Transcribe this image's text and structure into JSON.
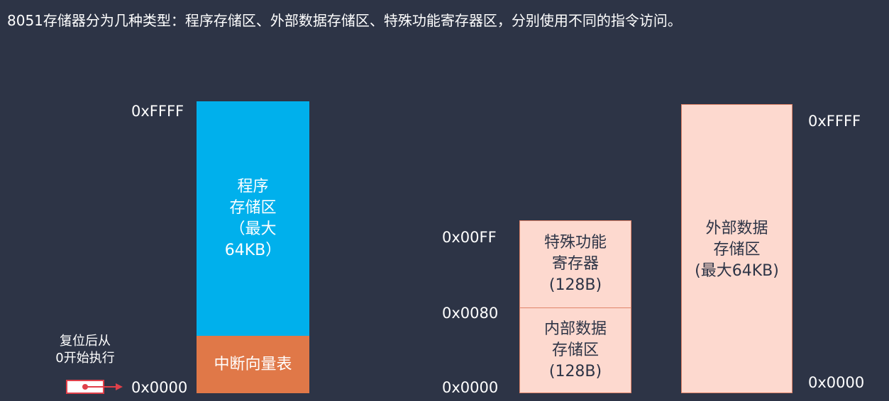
{
  "title": "8051存储器分为几种类型：程序存储区、外部数据存储区、特殊功能寄存器区，分别使用不同的指令访问。",
  "program_memory": {
    "top_address": "0xFFFF",
    "bottom_address": "0x0000",
    "main_label": "程序\n存储区\n（最大\n64KB）",
    "vector_table_label": "中断向量表",
    "reset_note": "复位后从\n0开始执行"
  },
  "internal_ram": {
    "top_address": "0x00FF",
    "mid_address": "0x0080",
    "bottom_address": "0x0000",
    "sfr_label": "特殊功能\n寄存器\n(128B)",
    "ram_label": "内部数据\n存储区\n(128B)"
  },
  "external_ram": {
    "top_address": "0xFFFF",
    "bottom_address": "0x0000",
    "label": "外部数据\n存储区\n(最大64KB)"
  },
  "colors": {
    "background": "#2d3446",
    "program_memory": "#00b0ec",
    "vector_table": "#e07848",
    "data_memory": "#fdd9cf",
    "data_memory_border": "#e0846a",
    "reset_arrow": "#e0404a"
  },
  "icons": {
    "reset_pointer": "arrow-right-icon"
  }
}
